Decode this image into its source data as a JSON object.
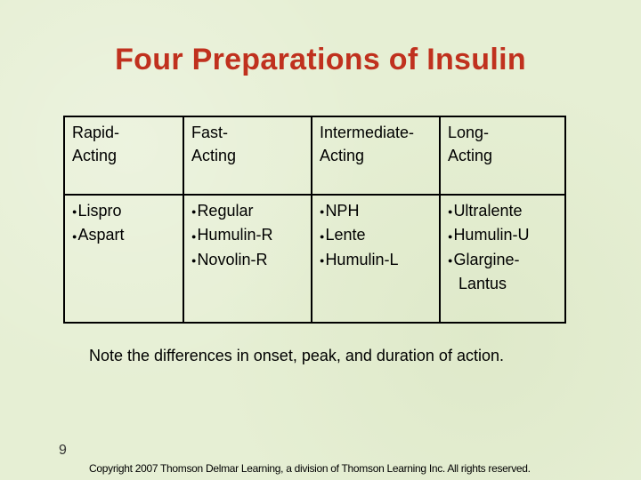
{
  "slide": {
    "title": "Four Preparations of Insulin",
    "page_number": "9",
    "note": "Note the differences in onset, peak, and duration of action.",
    "copyright": "Copyright 2007 Thomson Delmar Learning, a division of Thomson Learning Inc. All rights reserved."
  },
  "bullet_glyph": "●",
  "columns": [
    {
      "header": [
        "Rapid-",
        "Acting"
      ],
      "items": [
        "Lispro",
        "Aspart"
      ]
    },
    {
      "header": [
        "Fast-",
        "Acting"
      ],
      "items": [
        "Regular",
        "Humulin-R",
        "Novolin-R"
      ]
    },
    {
      "header": [
        "Intermediate-",
        "Acting"
      ],
      "items": [
        "NPH",
        "Lente",
        "Humulin-L"
      ]
    },
    {
      "header": [
        "Long-",
        "Acting"
      ],
      "items": [
        "Ultralente",
        "Humulin-U",
        "Glargine-",
        "Lantus"
      ]
    }
  ],
  "colors": {
    "title": "#c0311e",
    "background": "#e6efd4"
  }
}
